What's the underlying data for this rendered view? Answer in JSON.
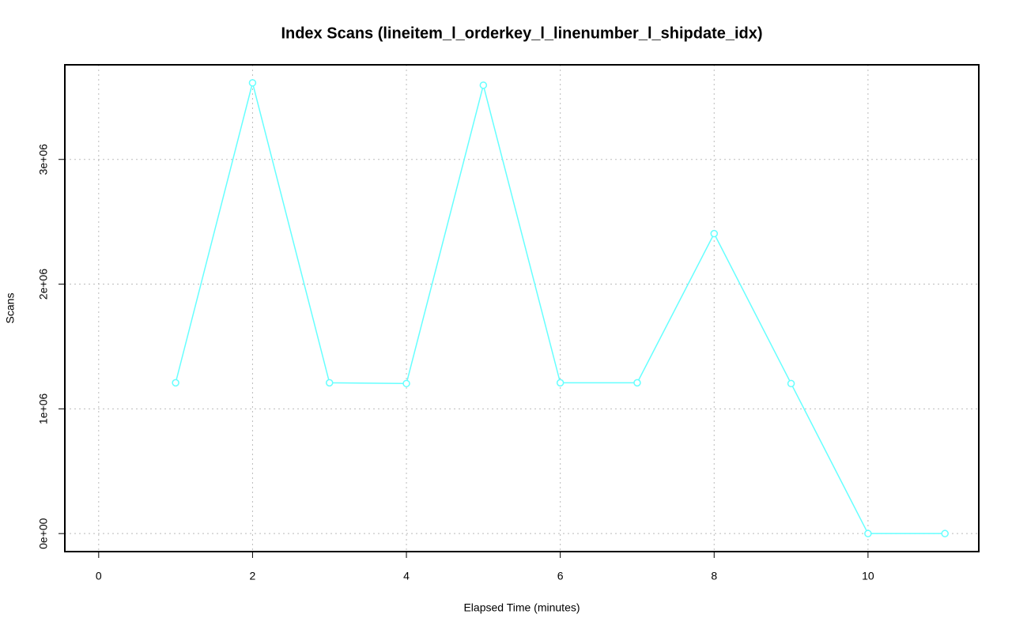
{
  "chart_data": {
    "type": "line",
    "title": "Index Scans (lineitem_l_orderkey_l_linenumber_l_shipdate_idx)",
    "x_label": "Elapsed Time (minutes)",
    "y_label": "Scans",
    "x": [
      1,
      2,
      3,
      4,
      5,
      6,
      7,
      8,
      9,
      10,
      11
    ],
    "series": [
      {
        "name": "lineitem_l_orderkey_l_linenumber_l_shipdate_idx",
        "color": "#66ffff",
        "values": [
          1209000,
          3614000,
          1209000,
          1203000,
          3595000,
          1209000,
          1209000,
          2405000,
          1203000,
          0,
          0
        ]
      }
    ],
    "xlim": [
      -0.44,
      11.44
    ],
    "ylim": [
      -144600,
      3758600
    ],
    "xticks": [
      0,
      2,
      4,
      6,
      8,
      10
    ],
    "yticks": [
      {
        "value": 0,
        "label": "0e+00"
      },
      {
        "value": 1000000,
        "label": "1e+06"
      },
      {
        "value": 2000000,
        "label": "2e+06"
      },
      {
        "value": 3000000,
        "label": "3e+06"
      }
    ],
    "grid": true
  }
}
